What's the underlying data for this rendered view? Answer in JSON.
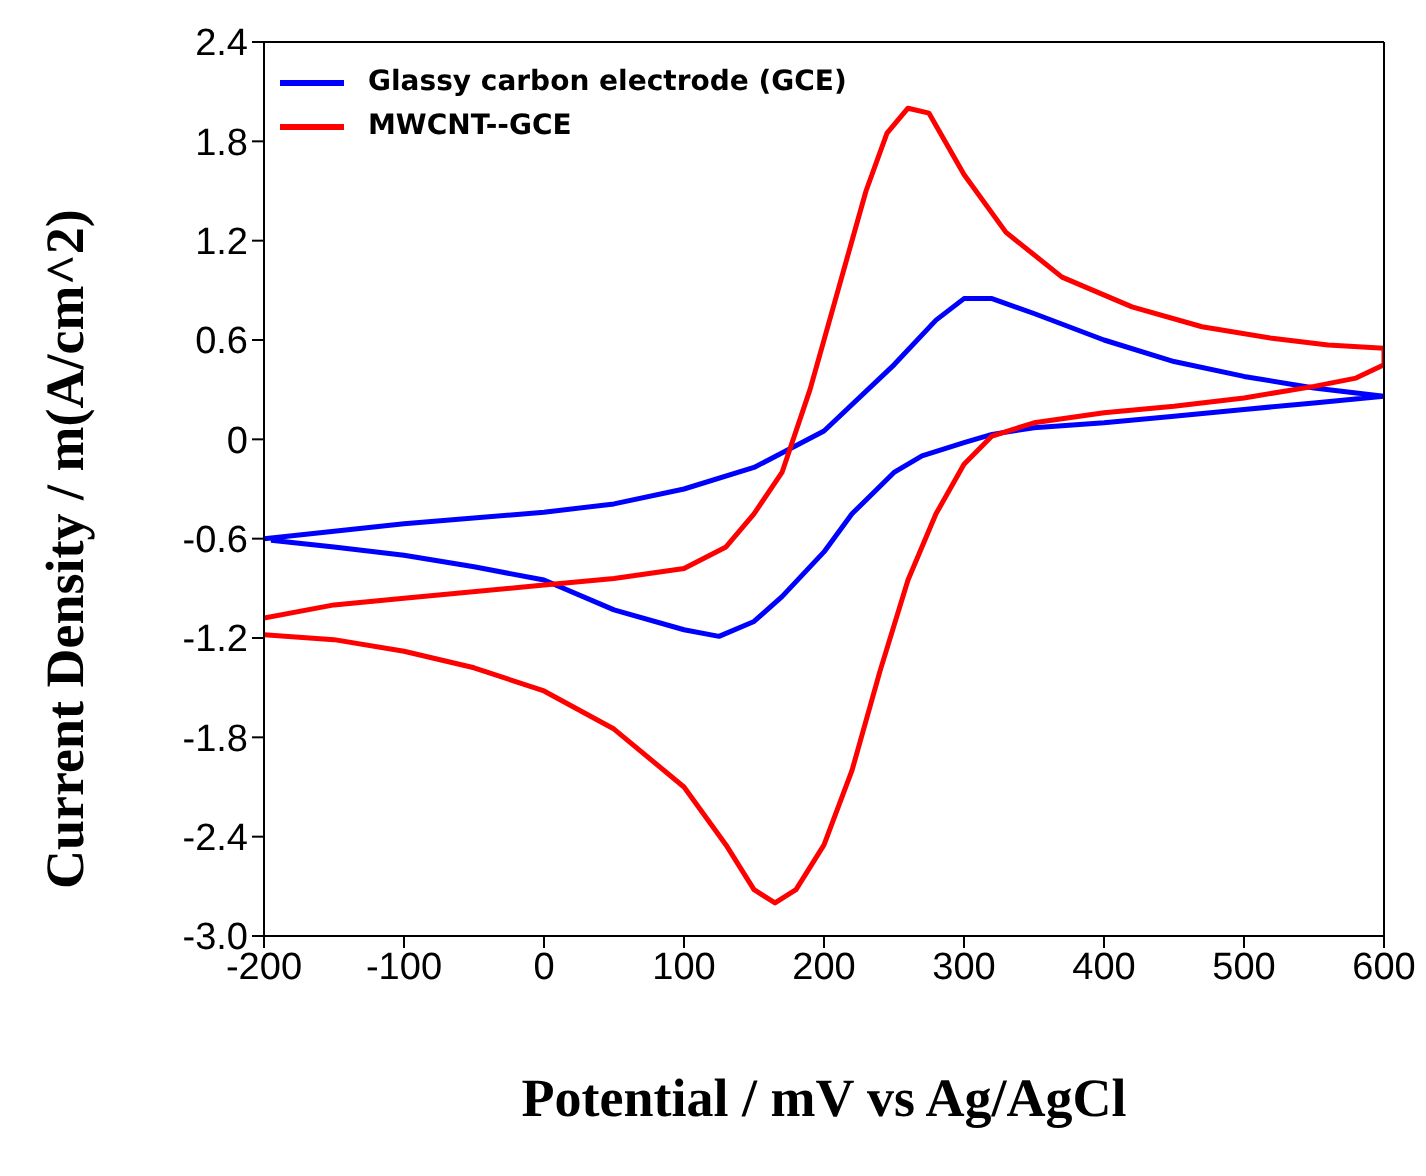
{
  "chart_data": {
    "type": "line",
    "xlabel": "Potential / mV vs Ag/AgCl",
    "ylabel": "Current Density / m(A/cm^2)",
    "xlim": [
      -200,
      600
    ],
    "xticks": [
      -200,
      -100,
      0,
      100,
      200,
      300,
      400,
      500,
      600
    ],
    "ylim": [
      -3.0,
      2.4
    ],
    "yticks": [
      {
        "value": -3.0,
        "label": "-3.0"
      },
      {
        "value": -2.4,
        "label": "-2.4"
      },
      {
        "value": -1.8,
        "label": "-1.8"
      },
      {
        "value": -1.2,
        "label": "-1.2"
      },
      {
        "value": -0.6,
        "label": "-0.6"
      },
      0,
      {
        "value": 0.6,
        "label": "0.6"
      },
      {
        "value": 1.2,
        "label": "1.2"
      },
      {
        "value": 1.8,
        "label": "1.8"
      },
      {
        "value": 2.4,
        "label": "2.4"
      }
    ],
    "grid": false,
    "legend": "top left",
    "marker": "none",
    "line_style": "solid",
    "series": [
      {
        "name": "Glassy carbon electrode (GCE)",
        "color": "#0000ff",
        "x": [
          -200,
          -100,
          0,
          50,
          100,
          150,
          200,
          250,
          280,
          300,
          320,
          350,
          400,
          450,
          500,
          550,
          600,
          550,
          500,
          450,
          400,
          350,
          320,
          300,
          270,
          250,
          220,
          200,
          170,
          150,
          125,
          100,
          50,
          0,
          -50,
          -100,
          -150,
          -195
        ],
        "values": [
          -0.6,
          -0.51,
          -0.44,
          -0.39,
          -0.3,
          -0.17,
          0.05,
          0.45,
          0.72,
          0.85,
          0.85,
          0.76,
          0.6,
          0.47,
          0.38,
          0.31,
          0.26,
          0.22,
          0.18,
          0.14,
          0.1,
          0.07,
          0.03,
          -0.02,
          -0.1,
          -0.2,
          -0.45,
          -0.68,
          -0.95,
          -1.1,
          -1.19,
          -1.15,
          -1.03,
          -0.85,
          -0.77,
          -0.7,
          -0.65,
          -0.61
        ]
      },
      {
        "name": "MWCNT--GCE",
        "color": "#ff0000",
        "x": [
          -200,
          -150,
          -100,
          0,
          50,
          100,
          130,
          150,
          170,
          190,
          210,
          230,
          245,
          260,
          275,
          300,
          330,
          370,
          420,
          470,
          520,
          560,
          600,
          600,
          580,
          550,
          500,
          450,
          400,
          350,
          320,
          300,
          280,
          260,
          240,
          220,
          200,
          180,
          165,
          150,
          130,
          100,
          50,
          0,
          -50,
          -100,
          -150,
          -200
        ],
        "values": [
          -1.08,
          -1.0,
          -0.96,
          -0.88,
          -0.84,
          -0.78,
          -0.65,
          -0.45,
          -0.2,
          0.3,
          0.9,
          1.5,
          1.85,
          2.0,
          1.97,
          1.6,
          1.25,
          0.98,
          0.8,
          0.68,
          0.61,
          0.57,
          0.55,
          0.45,
          0.37,
          0.32,
          0.25,
          0.2,
          0.16,
          0.1,
          0.02,
          -0.15,
          -0.45,
          -0.85,
          -1.4,
          -2.0,
          -2.45,
          -2.72,
          -2.8,
          -2.72,
          -2.45,
          -2.1,
          -1.75,
          -1.52,
          -1.38,
          -1.28,
          -1.21,
          -1.18
        ]
      }
    ]
  }
}
